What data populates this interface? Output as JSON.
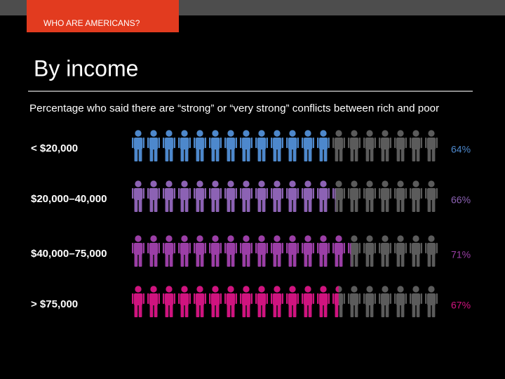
{
  "section_tag": "WHO ARE AMERICANS?",
  "chart_data": {
    "type": "pictogram",
    "title": "By income",
    "subtitle": "Percentage who said there are “strong” or “very strong” conflicts between rich and poor",
    "categories": [
      "< $20,000",
      "$20,000–40,000",
      "$40,000–75,000",
      "> $75,000"
    ],
    "values": [
      64,
      66,
      71,
      67
    ],
    "value_labels": [
      "64%",
      "66%",
      "71%",
      "67%"
    ],
    "colors": [
      "#4d88cc",
      "#8c62b4",
      "#9b3ea6",
      "#d0137f"
    ],
    "icon_count": 20,
    "xlim": [
      0,
      100
    ],
    "empty_color": "#5b5b5b"
  }
}
